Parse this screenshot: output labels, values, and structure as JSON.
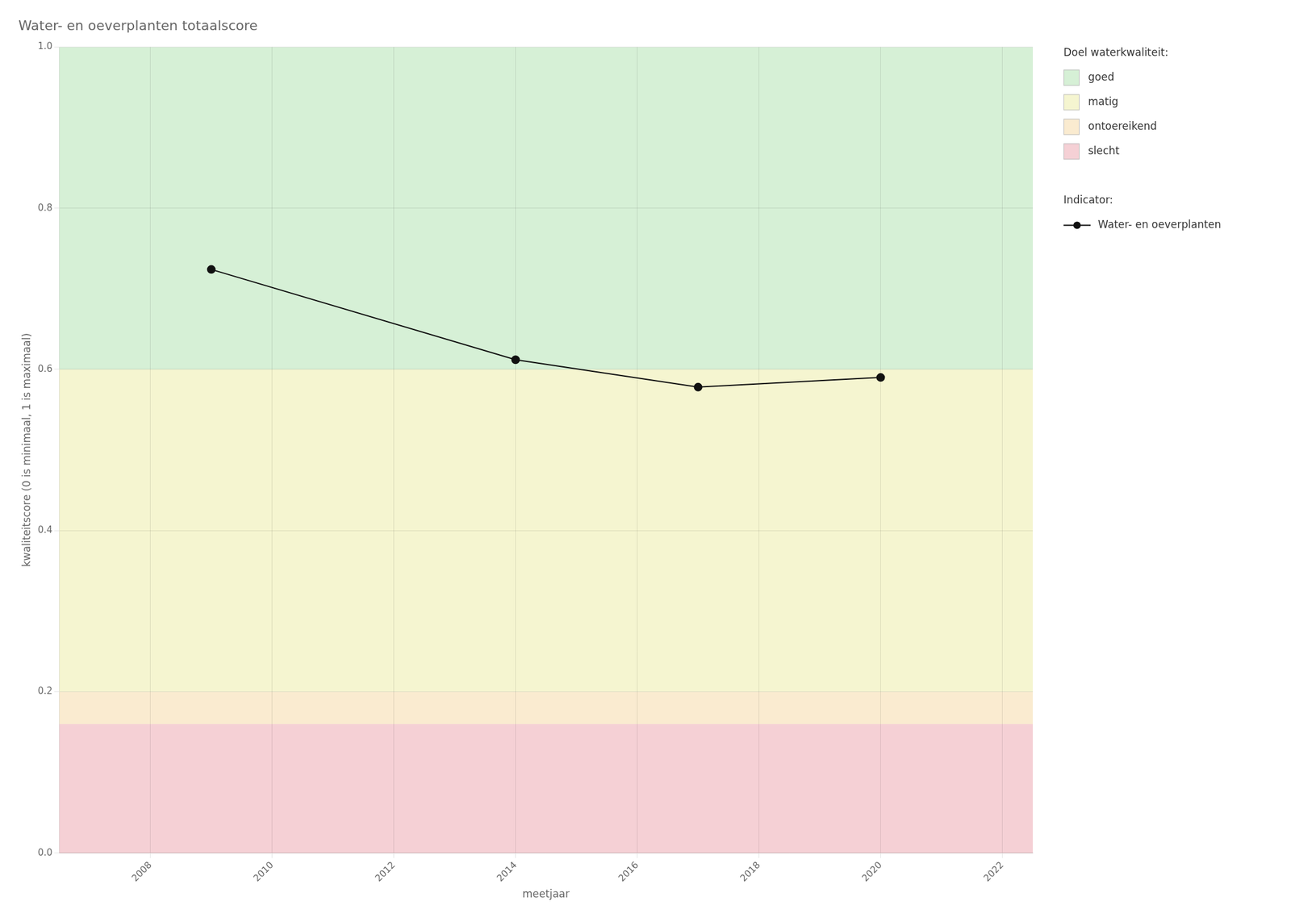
{
  "chart_data": {
    "type": "line",
    "title": "Water- en oeverplanten totaalscore",
    "xlabel": "meetjaar",
    "ylabel": "kwaliteitscore (0 is minimaal, 1 is maximaal)",
    "x": [
      2009,
      2014,
      2017,
      2020
    ],
    "series": [
      {
        "name": "Water- en oeverplanten",
        "color": "#111111",
        "marker": "circle",
        "line_style": "solid",
        "values": [
          0.724,
          0.612,
          0.578,
          0.59
        ]
      }
    ],
    "xlim": [
      2006.5,
      2022.5
    ],
    "ylim": [
      0.0,
      1.0
    ],
    "xticks": [
      2008,
      2010,
      2012,
      2014,
      2016,
      2018,
      2020,
      2022
    ],
    "yticks": [
      {
        "value": 0.0,
        "label": "0.0"
      },
      0.2,
      0.4,
      0.6,
      0.8,
      {
        "value": 1.0,
        "label": "1.0"
      }
    ],
    "grid": true,
    "legend": "right",
    "legend_title": "Indicator:",
    "bands_title": "Doel waterkwaliteit:",
    "bands": [
      {
        "name": "goed",
        "color": "#d6f0d6",
        "from": 0.6,
        "to": 1.0
      },
      {
        "name": "matig",
        "color": "#f5f5d0",
        "from": 0.2,
        "to": 0.6
      },
      {
        "name": "ontoereikend",
        "color": "#faebd0",
        "from": 0.16,
        "to": 0.2
      },
      {
        "name": "slecht",
        "color": "#f5d0d5",
        "from": 0.0,
        "to": 0.16
      }
    ]
  }
}
